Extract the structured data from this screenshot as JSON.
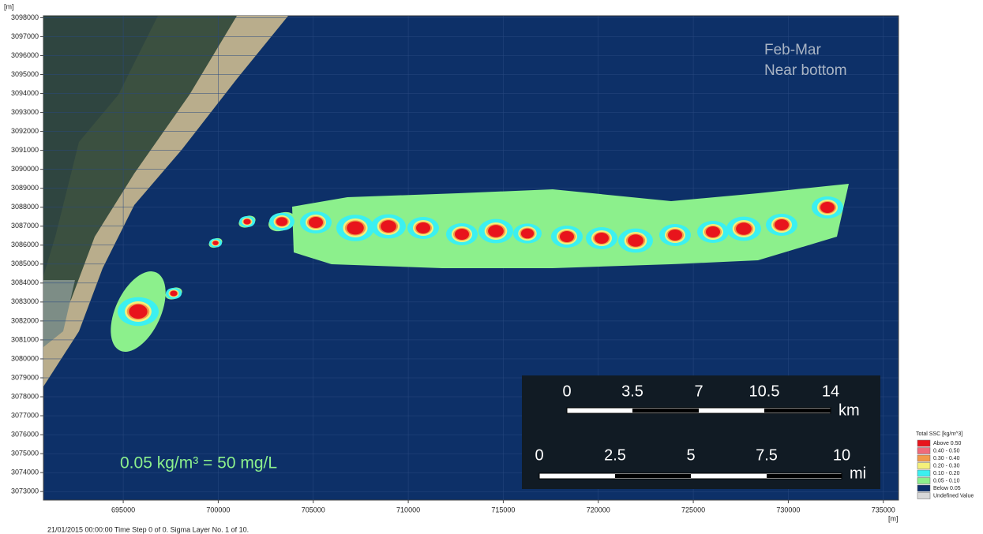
{
  "map": {
    "unit_y": "[m]",
    "unit_x": "[m]",
    "xlim": [
      690800,
      735800
    ],
    "ylim": [
      3072550,
      3098100
    ],
    "xticks": [
      695000,
      700000,
      705000,
      710000,
      715000,
      720000,
      725000,
      730000,
      735000
    ],
    "yticks": [
      3073000,
      3074000,
      3075000,
      3076000,
      3077000,
      3078000,
      3079000,
      3080000,
      3081000,
      3082000,
      3083000,
      3084000,
      3085000,
      3086000,
      3087000,
      3088000,
      3089000,
      3090000,
      3091000,
      3092000,
      3093000,
      3094000,
      3095000,
      3096000,
      3097000,
      3098000
    ],
    "annotation_period": "Feb-Mar",
    "annotation_layer": "Near bottom",
    "annotation_conversion": "0.05 kg/m³ = 50 mg/L",
    "footer": "21/01/2015 00:00:00  Time Step 0 of 0. Sigma Layer No. 1 of 10."
  },
  "scale_bar": {
    "km_labels": [
      "0",
      "3.5",
      "7",
      "10.5",
      "14"
    ],
    "km_unit": "km",
    "mi_labels": [
      "0",
      "2.5",
      "5",
      "7.5",
      "10"
    ],
    "mi_unit": "mi"
  },
  "legend": {
    "title": "Total SSC [kg/m^3]",
    "entries": [
      {
        "label": "Above 0.50",
        "color": "#e8141c"
      },
      {
        "label": "0.40 - 0.50",
        "color": "#f06a7a"
      },
      {
        "label": "0.30 - 0.40",
        "color": "#f29a4a"
      },
      {
        "label": "0.20 - 0.30",
        "color": "#f5f07a"
      },
      {
        "label": "0.10 - 0.20",
        "color": "#3cf0f0"
      },
      {
        "label": "0.05 - 0.10",
        "color": "#8cf08c"
      },
      {
        "label": "Below 0.05",
        "color": "#0a2f6b"
      },
      {
        "label": "Undefined Value",
        "color": "#d8d8d8"
      }
    ]
  }
}
